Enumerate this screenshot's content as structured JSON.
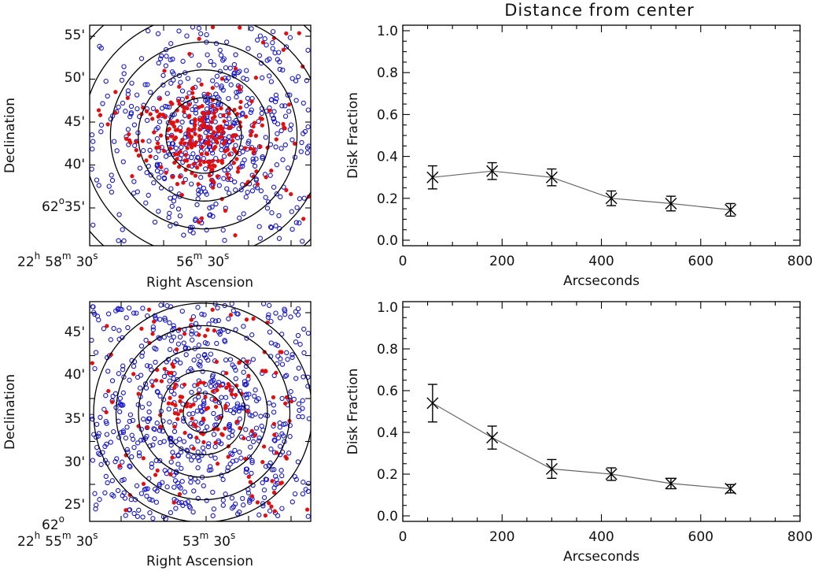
{
  "figure": {
    "title": "Distance from center",
    "colors": {
      "disk_star": "#e01010",
      "diskless_star": "#1515cc",
      "rings": "#000000",
      "trend_line": "#666666"
    }
  },
  "sky_maps": [
    {
      "name": "top",
      "xlabel": "Right Ascension",
      "ylabel": "Declination",
      "ra_ticks": [
        {
          "h": "22",
          "m": "58",
          "s": "30"
        },
        {
          "h": "",
          "m": "56",
          "s": "30"
        }
      ],
      "dec_ticks": [
        "55'",
        "50'",
        "45'",
        "40'",
        "35'"
      ],
      "dec_degree": "62",
      "n_rings": 5
    },
    {
      "name": "bottom",
      "xlabel": "Right Ascension",
      "ylabel": "Declination",
      "ra_ticks": [
        {
          "h": "22",
          "m": "55",
          "s": "30"
        },
        {
          "h": "",
          "m": "53",
          "s": "30"
        }
      ],
      "dec_ticks": [
        "45'",
        "40'",
        "35'",
        "30'",
        "25'"
      ],
      "dec_degree": "62",
      "n_rings": 5
    }
  ],
  "chart_data": [
    {
      "type": "line",
      "title": "Distance from center",
      "xlabel": "Arcseconds",
      "ylabel": "Disk Fraction",
      "xlim": [
        0,
        800
      ],
      "ylim": [
        0,
        1.0
      ],
      "xticks": [
        "0",
        "200",
        "400",
        "600",
        "800"
      ],
      "yticks": [
        "0.0",
        "0.2",
        "0.4",
        "0.6",
        "0.8",
        "1.0"
      ],
      "x": [
        60,
        180,
        300,
        420,
        540,
        660
      ],
      "y": [
        0.3,
        0.33,
        0.3,
        0.2,
        0.175,
        0.145
      ],
      "yerr": [
        0.055,
        0.04,
        0.04,
        0.035,
        0.035,
        0.03
      ]
    },
    {
      "type": "line",
      "title": "",
      "xlabel": "Arcseconds",
      "ylabel": "Disk Fraction",
      "xlim": [
        0,
        800
      ],
      "ylim": [
        0,
        1.0
      ],
      "xticks": [
        "0",
        "200",
        "400",
        "600",
        "800"
      ],
      "yticks": [
        "0.0",
        "0.2",
        "0.4",
        "0.6",
        "0.8",
        "1.0"
      ],
      "x": [
        60,
        180,
        300,
        420,
        540,
        660
      ],
      "y": [
        0.54,
        0.375,
        0.225,
        0.2,
        0.155,
        0.13
      ],
      "yerr": [
        0.09,
        0.055,
        0.045,
        0.03,
        0.025,
        0.02
      ]
    }
  ]
}
